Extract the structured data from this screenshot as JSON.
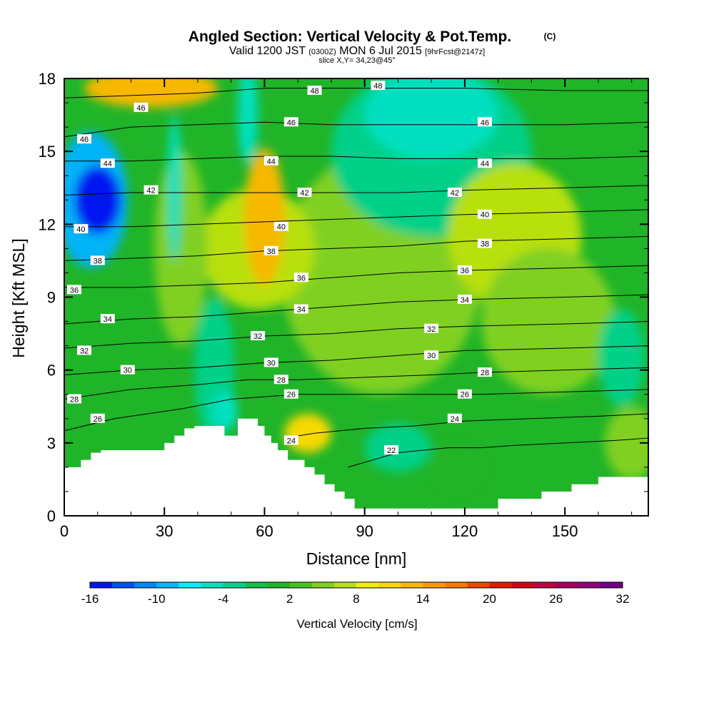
{
  "header": {
    "title": "Angled Section: Vertical Velocity & Pot.Temp.",
    "title_unit": "(C)",
    "valid_prefix": "Valid 1200 JST",
    "valid_z": "(0300Z)",
    "valid_date": "MON 6 Jul 2015",
    "forecast_tag": "[9hrFcst@2147z]",
    "slice": "slice X,Y= 34,23@45°"
  },
  "chart_data": {
    "type": "heatmap",
    "xlabel": "Distance [nm]",
    "ylabel": "Height [Kft MSL]",
    "xlim": [
      0,
      175
    ],
    "ylim": [
      0,
      18
    ],
    "x_ticks": [
      0,
      30,
      60,
      90,
      120,
      150
    ],
    "y_ticks": [
      0,
      3,
      6,
      9,
      12,
      15,
      18
    ],
    "colorbar": {
      "label": "Vertical Velocity [cm/s]",
      "tick_labels": [
        "-16",
        "-10",
        "-4",
        "2",
        "8",
        "14",
        "20",
        "26",
        "32"
      ],
      "levels": [
        -16,
        -14,
        -12,
        -10,
        -8,
        -6,
        -4,
        -2,
        0,
        2,
        4,
        6,
        8,
        10,
        12,
        14,
        16,
        18,
        20,
        22,
        24,
        26,
        28,
        30,
        32
      ],
      "colors": [
        "#0018f0",
        "#0050f8",
        "#0088f8",
        "#00b4f8",
        "#00f0f8",
        "#00e0c0",
        "#00d088",
        "#10c050",
        "#20b428",
        "#48c020",
        "#80d020",
        "#b8e010",
        "#f0f000",
        "#f8d800",
        "#f8b800",
        "#f89800",
        "#f87800",
        "#f04800",
        "#e81800",
        "#d80010",
        "#c00040",
        "#a80060",
        "#900078",
        "#700088"
      ]
    },
    "terrain_profile": {
      "x": [
        0,
        5,
        5,
        8,
        8,
        11,
        11,
        30,
        30,
        33,
        33,
        36,
        36,
        39,
        39,
        45,
        45,
        48,
        48,
        52,
        52,
        54,
        54,
        58,
        58,
        60,
        60,
        62,
        62,
        64,
        64,
        67,
        67,
        72,
        72,
        75,
        75,
        78,
        78,
        81,
        81,
        84,
        84,
        87,
        87,
        90,
        90,
        130,
        130,
        143,
        143,
        152,
        152,
        160,
        160,
        164,
        164,
        175
      ],
      "height": [
        2.0,
        2.0,
        2.3,
        2.3,
        2.6,
        2.6,
        2.7,
        2.7,
        3.0,
        3.0,
        3.3,
        3.3,
        3.6,
        3.6,
        3.7,
        3.7,
        3.7,
        3.7,
        3.3,
        3.3,
        4.0,
        4.0,
        4.0,
        4.0,
        3.7,
        3.7,
        3.3,
        3.3,
        3.0,
        3.0,
        2.7,
        2.7,
        2.3,
        2.3,
        2.0,
        2.0,
        1.7,
        1.7,
        1.3,
        1.3,
        1.0,
        1.0,
        0.7,
        0.7,
        0.3,
        0.3,
        0.3,
        0.3,
        0.7,
        0.7,
        1.0,
        1.0,
        1.3,
        1.3,
        1.6,
        1.6,
        1.6,
        1.6
      ]
    },
    "theta_contours": [
      {
        "label": "22",
        "x": [
          85,
          100,
          115,
          125,
          135,
          150,
          165,
          175
        ],
        "height": [
          2.0,
          2.6,
          2.8,
          2.8,
          2.9,
          3.0,
          3.1,
          3.2
        ]
      },
      {
        "label": "24",
        "x": [
          66,
          75,
          90,
          105,
          120,
          140,
          160,
          175
        ],
        "height": [
          3.2,
          3.4,
          3.6,
          3.7,
          3.9,
          4.0,
          4.1,
          4.2
        ]
      },
      {
        "label": "26",
        "x": [
          0,
          15,
          35,
          50,
          70,
          90,
          110,
          125,
          150,
          175
        ],
        "height": [
          3.5,
          4.0,
          4.4,
          4.8,
          5.0,
          5.0,
          5.0,
          5.0,
          5.1,
          5.2
        ]
      },
      {
        "label": "28",
        "x": [
          0,
          20,
          40,
          55,
          70,
          90,
          110,
          125,
          150,
          175
        ],
        "height": [
          4.8,
          5.2,
          5.4,
          5.6,
          5.6,
          5.7,
          5.8,
          5.9,
          6.0,
          6.1
        ]
      },
      {
        "label": "30",
        "x": [
          0,
          20,
          40,
          60,
          80,
          100,
          120,
          150,
          175
        ],
        "height": [
          5.8,
          6.0,
          6.1,
          6.3,
          6.4,
          6.6,
          6.8,
          6.9,
          7.0
        ]
      },
      {
        "label": "32",
        "x": [
          0,
          20,
          40,
          60,
          80,
          100,
          120,
          150,
          175
        ],
        "height": [
          6.9,
          7.1,
          7.2,
          7.4,
          7.5,
          7.7,
          7.8,
          7.9,
          8.0
        ]
      },
      {
        "label": "34",
        "x": [
          0,
          20,
          40,
          60,
          80,
          100,
          120,
          150,
          175
        ],
        "height": [
          7.9,
          8.1,
          8.2,
          8.4,
          8.6,
          8.8,
          8.9,
          9.0,
          9.1
        ]
      },
      {
        "label": "36",
        "x": [
          0,
          20,
          40,
          60,
          80,
          100,
          120,
          150,
          175
        ],
        "height": [
          9.4,
          9.4,
          9.5,
          9.6,
          9.8,
          10.0,
          10.1,
          10.2,
          10.3
        ]
      },
      {
        "label": "38",
        "x": [
          0,
          20,
          40,
          60,
          80,
          100,
          120,
          150,
          175
        ],
        "height": [
          10.5,
          10.6,
          10.7,
          10.9,
          11.0,
          11.1,
          11.3,
          11.4,
          11.5
        ]
      },
      {
        "label": "40",
        "x": [
          0,
          20,
          40,
          60,
          80,
          100,
          120,
          150,
          175
        ],
        "height": [
          11.9,
          11.9,
          12.0,
          12.1,
          12.2,
          12.3,
          12.4,
          12.5,
          12.6
        ]
      },
      {
        "label": "42",
        "x": [
          0,
          20,
          40,
          60,
          80,
          100,
          120,
          150,
          175
        ],
        "height": [
          13.2,
          13.3,
          13.3,
          13.3,
          13.3,
          13.3,
          13.4,
          13.5,
          13.6
        ]
      },
      {
        "label": "44",
        "x": [
          0,
          20,
          40,
          60,
          80,
          100,
          120,
          150,
          175
        ],
        "height": [
          14.6,
          14.6,
          14.7,
          14.8,
          14.8,
          14.7,
          14.7,
          14.7,
          14.8
        ]
      },
      {
        "label": "46",
        "x": [
          0,
          20,
          40,
          60,
          80,
          100,
          120,
          150,
          175
        ],
        "height": [
          15.6,
          16.0,
          16.1,
          16.2,
          16.1,
          16.1,
          16.1,
          16.1,
          16.2
        ]
      },
      {
        "label": "48",
        "x": [
          0,
          20,
          40,
          60,
          80,
          100,
          120,
          150,
          175
        ],
        "height": [
          17.2,
          17.3,
          17.4,
          17.6,
          17.6,
          17.6,
          17.6,
          17.5,
          17.5
        ]
      }
    ],
    "theta_labels": [
      {
        "text": "48",
        "x": 75,
        "y": 17.5
      },
      {
        "text": "48",
        "x": 94,
        "y": 17.7
      },
      {
        "text": "46",
        "x": 23,
        "y": 16.8
      },
      {
        "text": "46",
        "x": 6,
        "y": 15.5
      },
      {
        "text": "46",
        "x": 68,
        "y": 16.2
      },
      {
        "text": "46",
        "x": 126,
        "y": 16.2
      },
      {
        "text": "44",
        "x": 13,
        "y": 14.5
      },
      {
        "text": "44",
        "x": 62,
        "y": 14.6
      },
      {
        "text": "44",
        "x": 126,
        "y": 14.5
      },
      {
        "text": "42",
        "x": 26,
        "y": 13.4
      },
      {
        "text": "42",
        "x": 72,
        "y": 13.3
      },
      {
        "text": "42",
        "x": 117,
        "y": 13.3
      },
      {
        "text": "40",
        "x": 5,
        "y": 11.8
      },
      {
        "text": "40",
        "x": 65,
        "y": 11.9
      },
      {
        "text": "40",
        "x": 126,
        "y": 12.4
      },
      {
        "text": "38",
        "x": 10,
        "y": 10.5
      },
      {
        "text": "38",
        "x": 62,
        "y": 10.9
      },
      {
        "text": "38",
        "x": 126,
        "y": 11.2
      },
      {
        "text": "36",
        "x": 3,
        "y": 9.3
      },
      {
        "text": "36",
        "x": 71,
        "y": 9.8
      },
      {
        "text": "36",
        "x": 120,
        "y": 10.1
      },
      {
        "text": "34",
        "x": 13,
        "y": 8.1
      },
      {
        "text": "34",
        "x": 71,
        "y": 8.5
      },
      {
        "text": "34",
        "x": 120,
        "y": 8.9
      },
      {
        "text": "32",
        "x": 6,
        "y": 6.8
      },
      {
        "text": "32",
        "x": 58,
        "y": 7.4
      },
      {
        "text": "32",
        "x": 110,
        "y": 7.7
      },
      {
        "text": "30",
        "x": 19,
        "y": 6.0
      },
      {
        "text": "30",
        "x": 62,
        "y": 6.3
      },
      {
        "text": "30",
        "x": 110,
        "y": 6.6
      },
      {
        "text": "28",
        "x": 3,
        "y": 4.8
      },
      {
        "text": "28",
        "x": 65,
        "y": 5.6
      },
      {
        "text": "28",
        "x": 126,
        "y": 5.9
      },
      {
        "text": "26",
        "x": 10,
        "y": 4.0
      },
      {
        "text": "26",
        "x": 68,
        "y": 5.0
      },
      {
        "text": "26",
        "x": 120,
        "y": 5.0
      },
      {
        "text": "24",
        "x": 68,
        "y": 3.1
      },
      {
        "text": "24",
        "x": 117,
        "y": 4.0
      },
      {
        "text": "22",
        "x": 98,
        "y": 2.7
      }
    ],
    "velocity_features": [
      {
        "value": -16,
        "x": 10,
        "y": 13.0,
        "rx": 7,
        "ry": 1.4
      },
      {
        "value": -10,
        "x": 8,
        "y": 13.0,
        "rx": 11,
        "ry": 2.8
      },
      {
        "value": -6,
        "x": 48,
        "y": 4.3,
        "rx": 4,
        "ry": 0.8
      },
      {
        "value": -6,
        "x": 33,
        "y": 13.5,
        "rx": 2,
        "ry": 3.0
      },
      {
        "value": -6,
        "x": 55,
        "y": 16.5,
        "rx": 3,
        "ry": 2.0
      },
      {
        "value": -6,
        "x": 110,
        "y": 16.5,
        "rx": 20,
        "ry": 1.8
      },
      {
        "value": -4,
        "x": 110,
        "y": 15.0,
        "rx": 30,
        "ry": 3.5
      },
      {
        "value": -4,
        "x": 167,
        "y": 6.5,
        "rx": 7,
        "ry": 2.0
      },
      {
        "value": -4,
        "x": 45,
        "y": 6.0,
        "rx": 6,
        "ry": 3.0
      },
      {
        "value": 12,
        "x": 60,
        "y": 12.3,
        "rx": 6,
        "ry": 2.8
      },
      {
        "value": 12,
        "x": 26,
        "y": 17.6,
        "rx": 20,
        "ry": 0.8
      },
      {
        "value": 10,
        "x": 73,
        "y": 3.4,
        "rx": 7,
        "ry": 0.8
      },
      {
        "value": 6,
        "x": 58,
        "y": 11.0,
        "rx": 17,
        "ry": 2.5
      },
      {
        "value": 6,
        "x": 135,
        "y": 11.5,
        "rx": 20,
        "ry": 3.0
      },
      {
        "value": 4,
        "x": 95,
        "y": 10.0,
        "rx": 30,
        "ry": 5.0
      },
      {
        "value": 4,
        "x": 145,
        "y": 8.0,
        "rx": 20,
        "ry": 3.0
      },
      {
        "value": 4,
        "x": 170,
        "y": 3.0,
        "rx": 8,
        "ry": 1.5
      },
      {
        "value": 4,
        "x": 35,
        "y": 11.0,
        "rx": 8,
        "ry": 4.0
      },
      {
        "value": 0,
        "x": 118,
        "y": 2.0,
        "rx": 8,
        "ry": 1.0
      },
      {
        "value": -4,
        "x": 100,
        "y": 2.8,
        "rx": 10,
        "ry": 1.0
      }
    ]
  }
}
